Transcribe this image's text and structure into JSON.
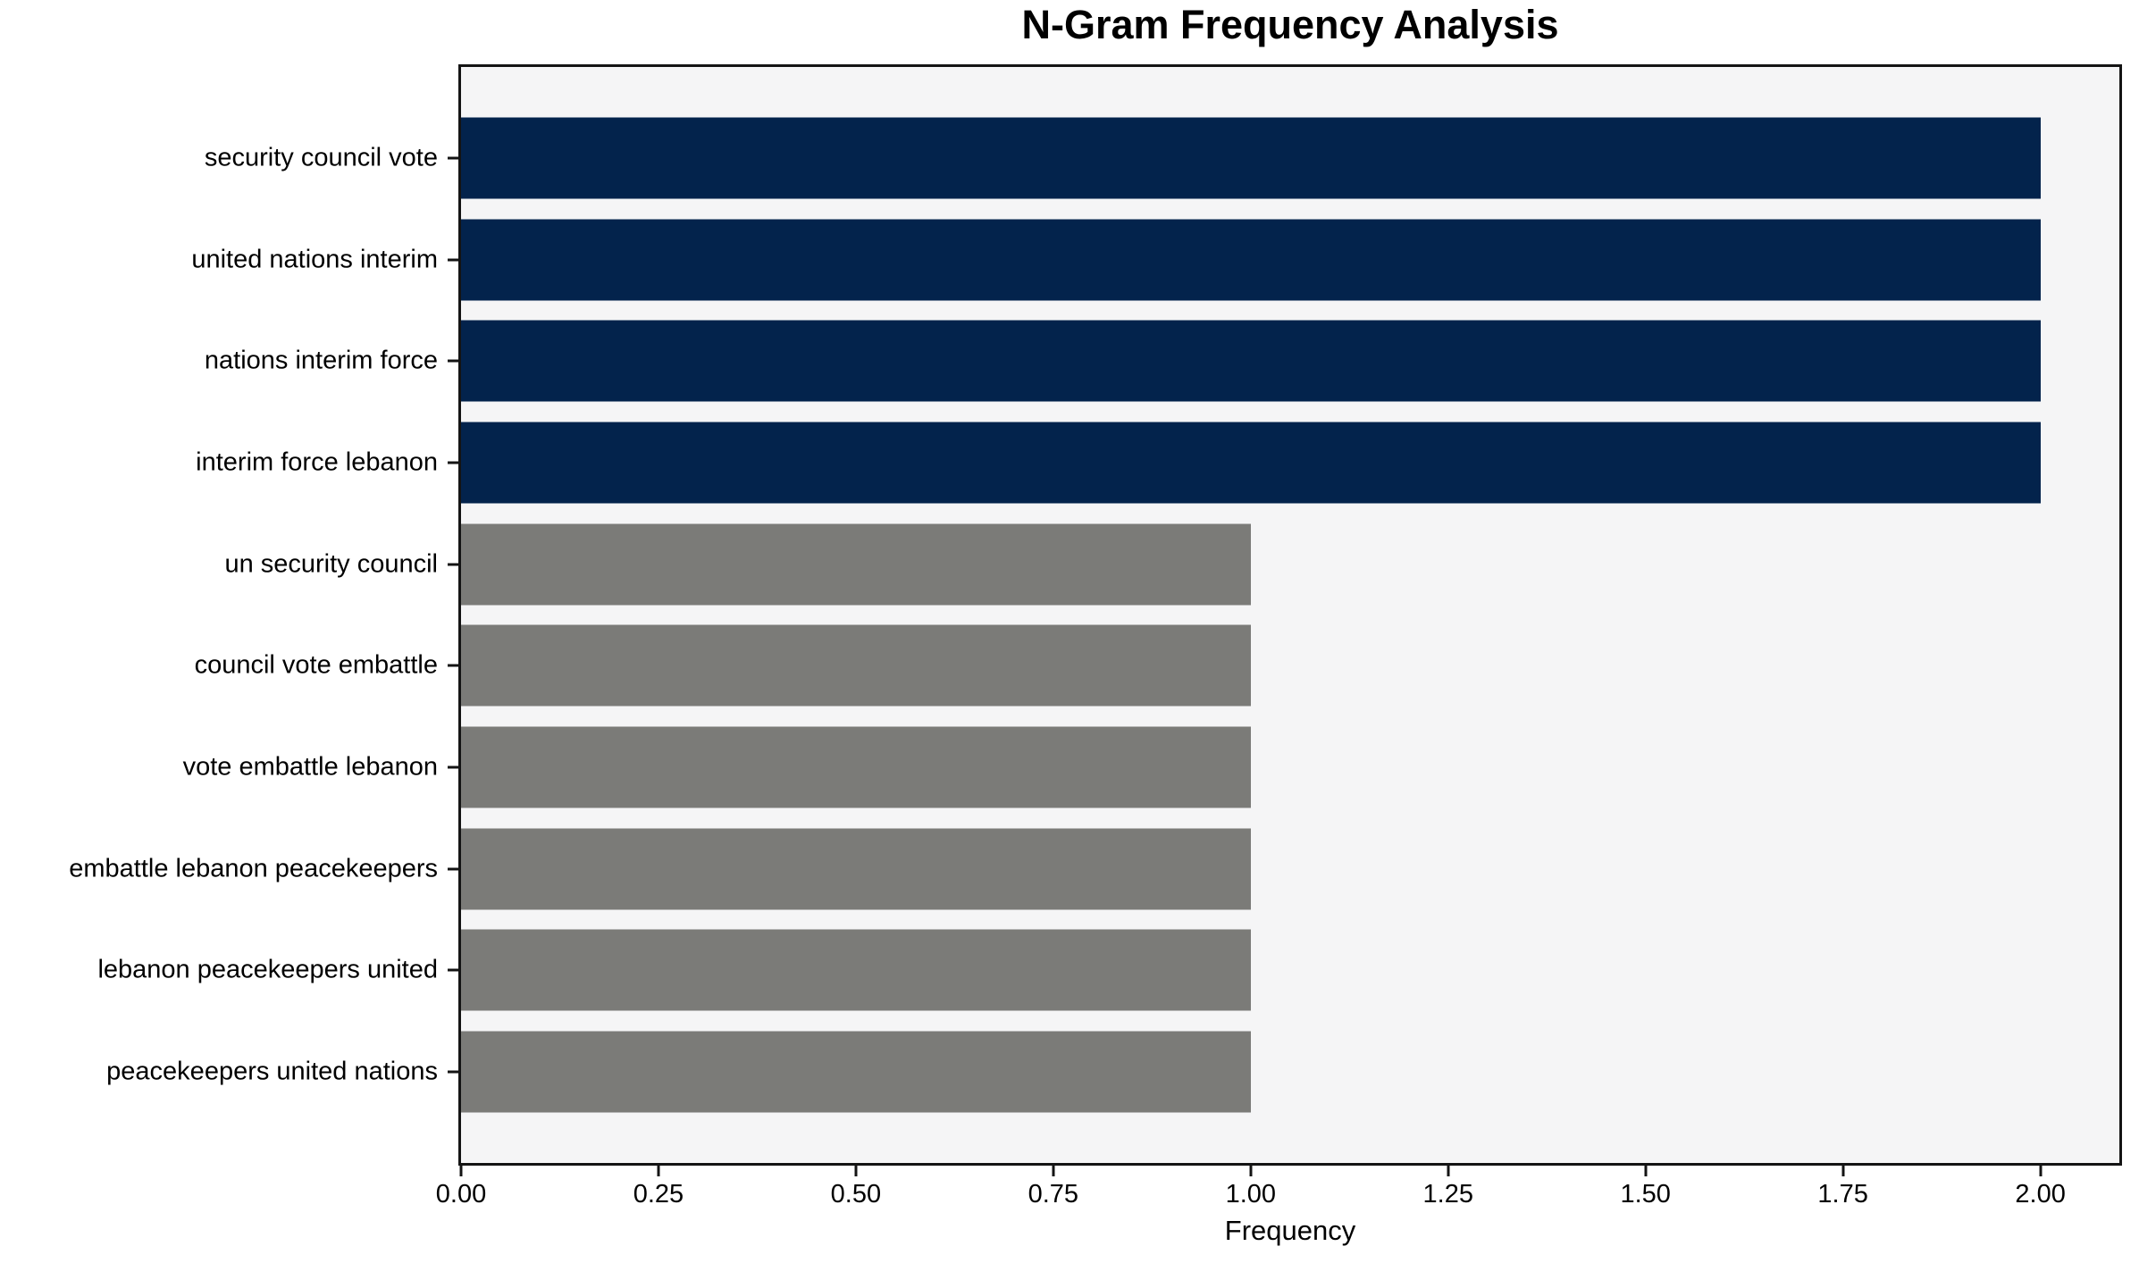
{
  "colors": {
    "page_background": "#ffffff",
    "plot_background": "#f5f5f6",
    "spine": "#141414",
    "bar_navy": "#03234c",
    "bar_gray": "#7b7b78",
    "text": "#000000"
  },
  "chart_data": {
    "type": "bar",
    "orientation": "horizontal",
    "title": "N-Gram Frequency Analysis",
    "xlabel": "Frequency",
    "ylabel": "",
    "categories": [
      "security council vote",
      "united nations interim",
      "nations interim force",
      "interim force lebanon",
      "un security council",
      "council vote embattle",
      "vote embattle lebanon",
      "embattle lebanon peacekeepers",
      "lebanon peacekeepers united",
      "peacekeepers united nations"
    ],
    "values": [
      2,
      2,
      2,
      2,
      1,
      1,
      1,
      1,
      1,
      1
    ],
    "bar_colors": [
      "#03234c",
      "#03234c",
      "#03234c",
      "#03234c",
      "#7b7b78",
      "#7b7b78",
      "#7b7b78",
      "#7b7b78",
      "#7b7b78",
      "#7b7b78"
    ],
    "xlim": [
      0,
      2.1
    ],
    "xtick_values": [
      0,
      0.25,
      0.5,
      0.75,
      1.0,
      1.25,
      1.5,
      1.75,
      2.0
    ],
    "xtick_labels": [
      "0.00",
      "0.25",
      "0.50",
      "0.75",
      "1.00",
      "1.25",
      "1.50",
      "1.75",
      "2.00"
    ],
    "grid": "off",
    "legend": "none"
  }
}
